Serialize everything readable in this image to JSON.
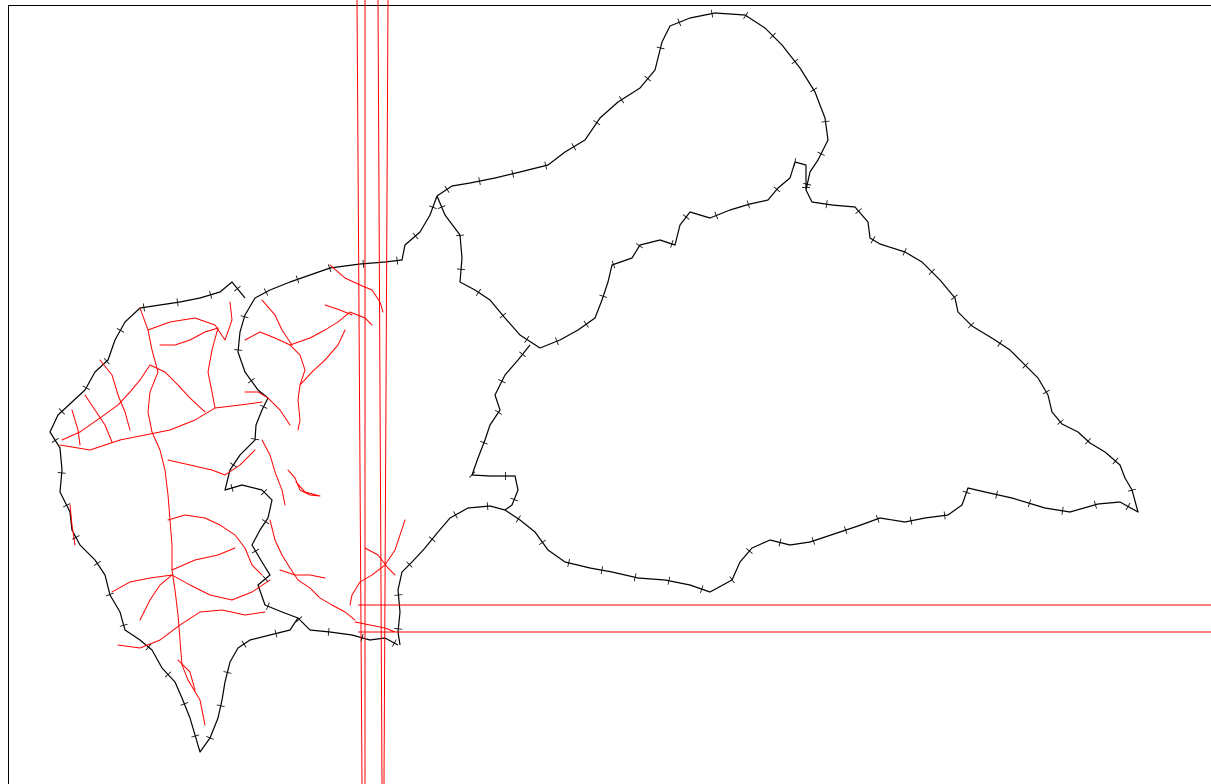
{
  "map": {
    "background": "#ffffff",
    "border_color": "#000000",
    "road_color": "#ff0000",
    "grid_line_color": "#ff0000",
    "layers": [
      "administrative-boundaries",
      "road-network",
      "reference-lines"
    ]
  }
}
